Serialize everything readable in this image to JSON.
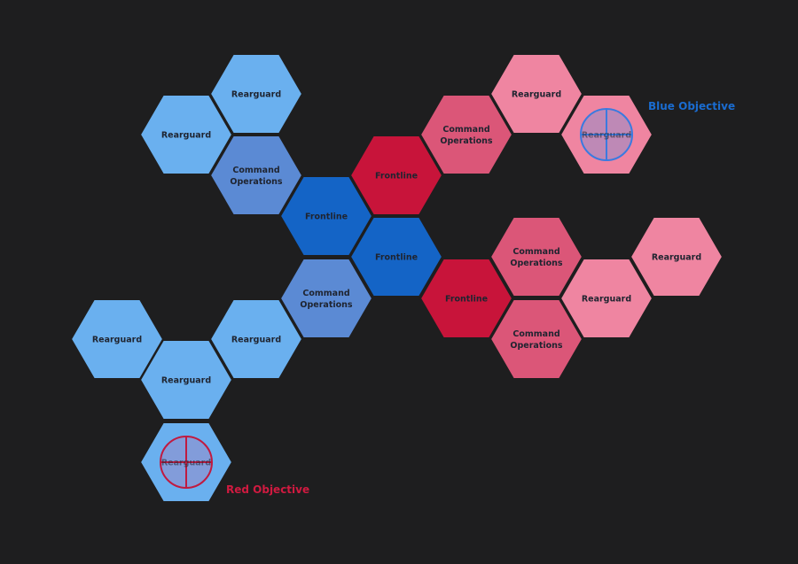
{
  "colors": {
    "background": "#1e1e1f",
    "blue_rearguard": "#6ab0ef",
    "blue_command": "#5b8ad4",
    "blue_frontline": "#1464c6",
    "red_rearguard": "#ef85a1",
    "red_command": "#db5678",
    "red_frontline": "#c8143a",
    "blue_objective_text": "#1a6cd0",
    "red_objective_text": "#d01a40",
    "blue_objective_marker": "#3a7ae0",
    "red_objective_marker": "#c01a40"
  },
  "hexes": [
    {
      "id": "b-rear-1",
      "side": "blue",
      "role": "rearguard",
      "label": [
        "Rearguard"
      ]
    },
    {
      "id": "b-rear-2",
      "side": "blue",
      "role": "rearguard",
      "label": [
        "Rearguard"
      ]
    },
    {
      "id": "b-cmd-1",
      "side": "blue",
      "role": "command",
      "label": [
        "Command",
        "Operations"
      ]
    },
    {
      "id": "b-front-1",
      "side": "blue",
      "role": "frontline",
      "label": [
        "Frontline"
      ]
    },
    {
      "id": "b-front-2",
      "side": "blue",
      "role": "frontline",
      "label": [
        "Frontline"
      ]
    },
    {
      "id": "b-cmd-2",
      "side": "blue",
      "role": "command",
      "label": [
        "Command",
        "Operations"
      ]
    },
    {
      "id": "b-rear-3",
      "side": "blue",
      "role": "rearguard",
      "label": [
        "Rearguard"
      ]
    },
    {
      "id": "b-rear-4",
      "side": "blue",
      "role": "rearguard",
      "label": [
        "Rearguard"
      ]
    },
    {
      "id": "b-rear-5",
      "side": "blue",
      "role": "rearguard",
      "label": [
        "Rearguard"
      ]
    },
    {
      "id": "b-rear-obj",
      "side": "blue",
      "role": "rearguard",
      "label": [
        "Rearguard"
      ],
      "objective": "red"
    },
    {
      "id": "r-front-1",
      "side": "red",
      "role": "frontline",
      "label": [
        "Frontline"
      ]
    },
    {
      "id": "r-cmd-1",
      "side": "red",
      "role": "command",
      "label": [
        "Command",
        "Operations"
      ]
    },
    {
      "id": "r-rear-1",
      "side": "red",
      "role": "rearguard",
      "label": [
        "Rearguard"
      ]
    },
    {
      "id": "r-rear-obj",
      "side": "red",
      "role": "rearguard",
      "label": [
        "Rearguard"
      ],
      "objective": "blue"
    },
    {
      "id": "r-front-2",
      "side": "red",
      "role": "frontline",
      "label": [
        "Frontline"
      ]
    },
    {
      "id": "r-cmd-2",
      "side": "red",
      "role": "command",
      "label": [
        "Command",
        "Operations"
      ]
    },
    {
      "id": "r-cmd-3",
      "side": "red",
      "role": "command",
      "label": [
        "Command",
        "Operations"
      ]
    },
    {
      "id": "r-rear-2",
      "side": "red",
      "role": "rearguard",
      "label": [
        "Rearguard"
      ]
    },
    {
      "id": "r-rear-3",
      "side": "red",
      "role": "rearguard",
      "label": [
        "Rearguard"
      ]
    }
  ],
  "objectives": {
    "blue": {
      "label": "Blue Objective"
    },
    "red": {
      "label": "Red Objective"
    }
  }
}
